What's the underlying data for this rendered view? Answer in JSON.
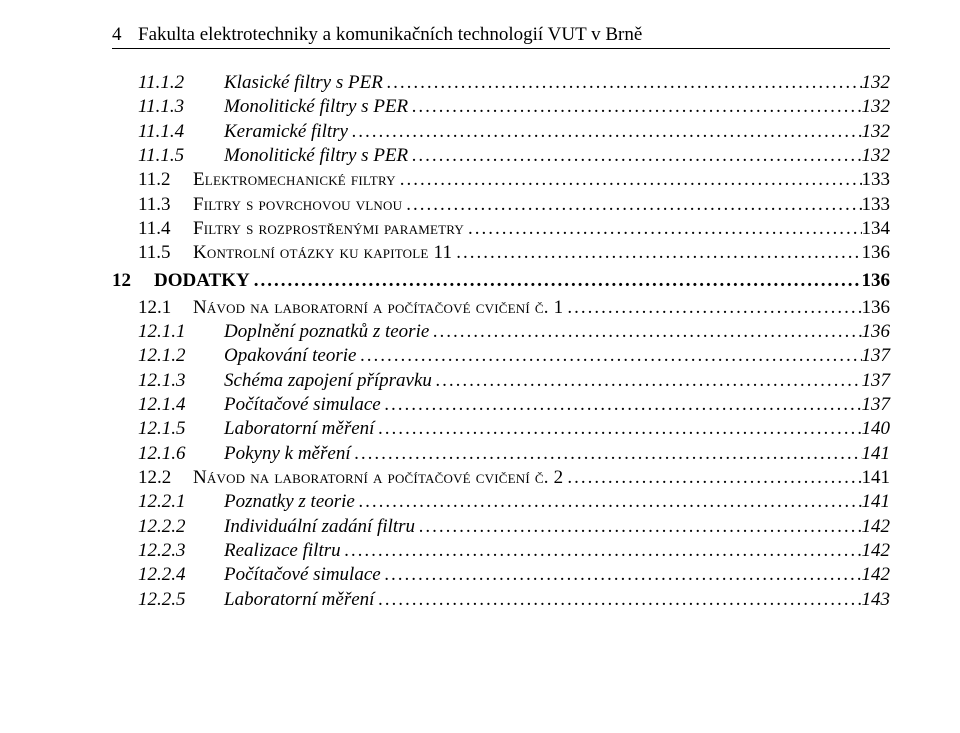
{
  "header": {
    "page_number": "4",
    "title": "Fakulta elektrotechniky a komunikačních technologií VUT v Brně"
  },
  "toc": [
    {
      "level": "a",
      "num": "11.1.2",
      "label": "Klasické filtry s PER",
      "page": "132"
    },
    {
      "level": "a",
      "num": "11.1.3",
      "label": "Monolitické filtry s PER",
      "page": "132"
    },
    {
      "level": "a",
      "num": "11.1.4",
      "label": "Keramické filtry",
      "page": "132"
    },
    {
      "level": "a",
      "num": "11.1.5",
      "label": "Monolitické filtry s PER",
      "page": "132"
    },
    {
      "level": "b",
      "num": "11.2",
      "label": "Elektromechanické filtry",
      "page": "133"
    },
    {
      "level": "b",
      "num": "11.3",
      "label": "Filtry s povrchovou vlnou",
      "page": "133"
    },
    {
      "level": "b",
      "num": "11.4",
      "label": "Filtry s rozprostřenými parametry",
      "page": "134"
    },
    {
      "level": "b",
      "num": "11.5",
      "label": "Kontrolní otázky ku kapitole 11",
      "page": "136"
    },
    {
      "level": "c",
      "num": "12",
      "label": "DODATKY",
      "page": "136"
    },
    {
      "level": "d",
      "num": "12.1",
      "label": "Návod na laboratorní a počítačové cvičení č. 1",
      "page": "136"
    },
    {
      "level": "e",
      "num": "12.1.1",
      "label": "Doplnění poznatků z teorie",
      "page": "136"
    },
    {
      "level": "e",
      "num": "12.1.2",
      "label": "Opakování teorie",
      "page": "137"
    },
    {
      "level": "e",
      "num": "12.1.3",
      "label": "Schéma zapojení přípravku",
      "page": "137"
    },
    {
      "level": "e",
      "num": "12.1.4",
      "label": "Počítačové simulace",
      "page": "137"
    },
    {
      "level": "e",
      "num": "12.1.5",
      "label": "Laboratorní měření",
      "page": "140"
    },
    {
      "level": "e",
      "num": "12.1.6",
      "label": "Pokyny k měření",
      "page": "141"
    },
    {
      "level": "d",
      "num": "12.2",
      "label": "Návod na laboratorní a počítačové cvičení č. 2",
      "page": "141"
    },
    {
      "level": "e",
      "num": "12.2.1",
      "label": "Poznatky z teorie",
      "page": "141"
    },
    {
      "level": "e",
      "num": "12.2.2",
      "label": "Individuální zadání filtru",
      "page": "142"
    },
    {
      "level": "e",
      "num": "12.2.3",
      "label": "Realizace filtru",
      "page": "142"
    },
    {
      "level": "e",
      "num": "12.2.4",
      "label": "Počítačové simulace",
      "page": "142"
    },
    {
      "level": "e",
      "num": "12.2.5",
      "label": "Laboratorní měření",
      "page": "143"
    }
  ]
}
